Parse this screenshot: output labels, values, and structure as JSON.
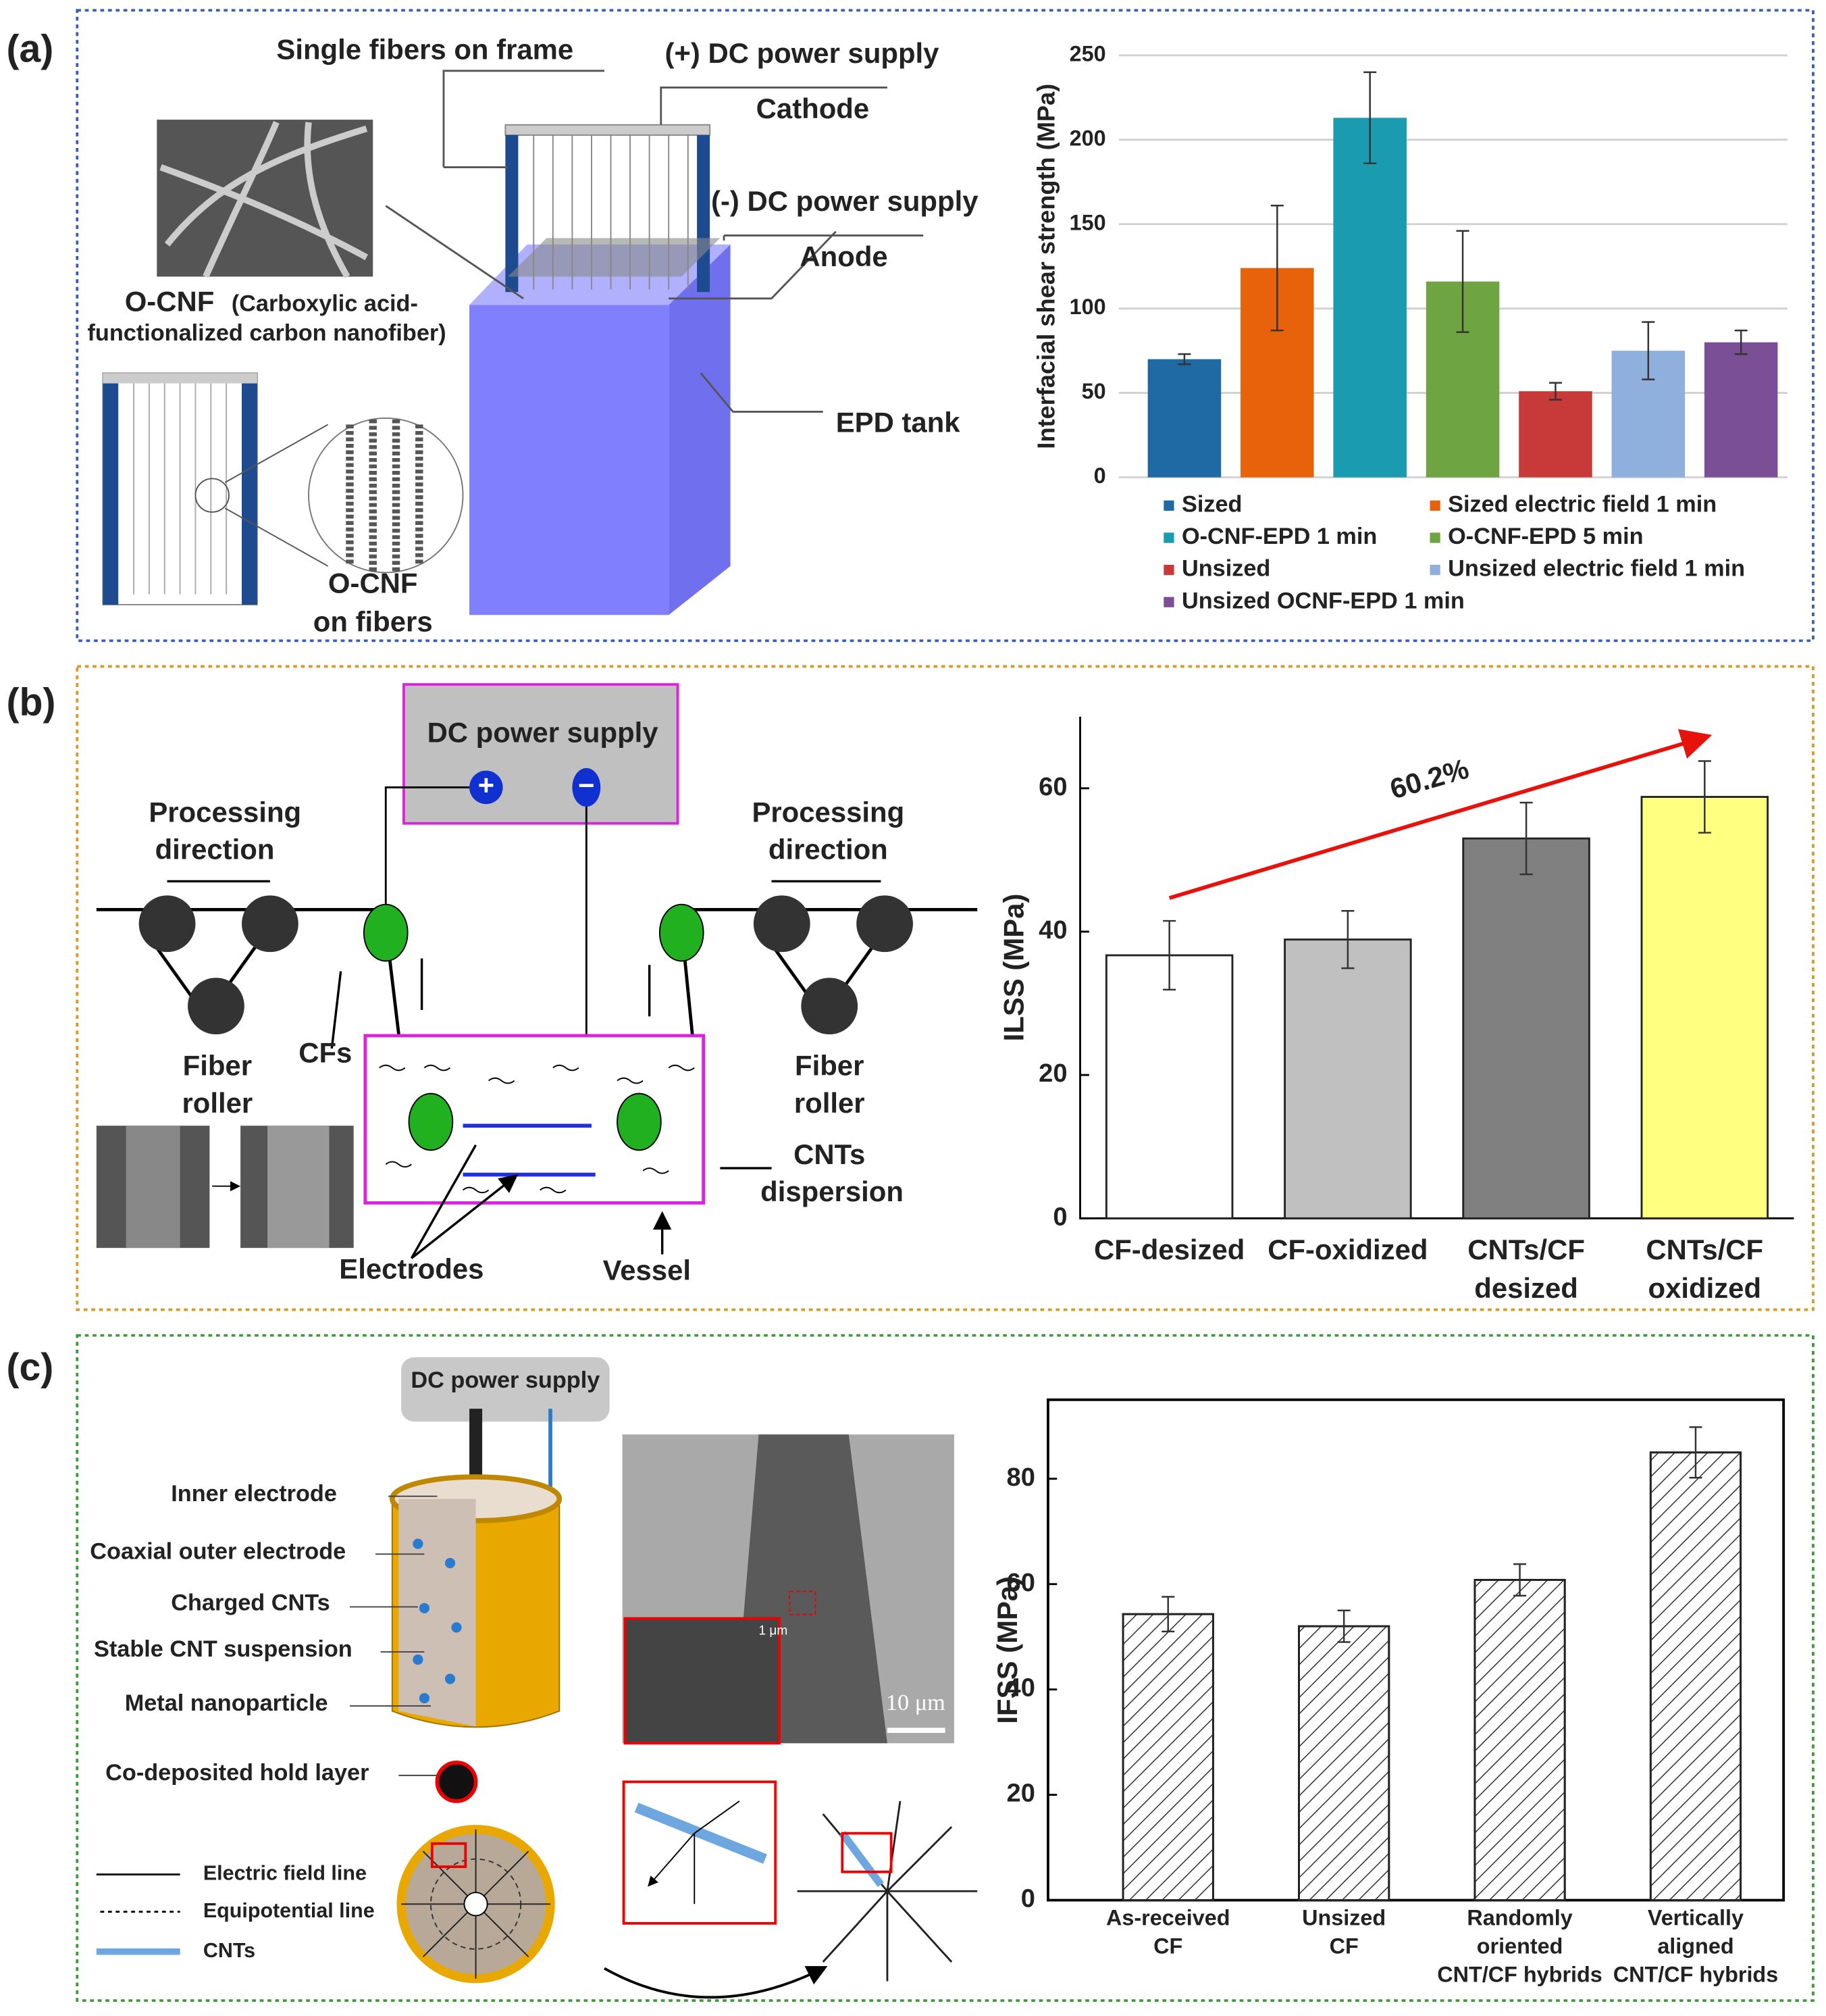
{
  "panel_labels": [
    "(a)",
    "(b)",
    "(c)"
  ],
  "diagrams": {
    "a": [
      "Single fibers on frame",
      "(+) DC power supply",
      "Cathode",
      "(-) DC power supply",
      "Anode",
      "O-CNF",
      "(Carboxylic acid-",
      "functionalized carbon nanofiber)",
      "EPD tank",
      "O-CNF",
      "on fibers"
    ],
    "b": [
      "DC power supply",
      "Processing",
      "direction",
      "Processing",
      "direction",
      "CFs",
      "Fiber",
      "roller",
      "Fiber",
      "roller",
      "CNTs",
      "dispersion",
      "Electrodes",
      "Vessel"
    ],
    "c": [
      "DC power supply",
      "Inner electrode",
      "Coaxial outer electrode",
      "Charged CNTs",
      "Stable CNT suspension",
      "Metal nanoparticle",
      "Co-deposited hold layer",
      "Electric field line",
      "Equipotential line",
      "CNTs",
      "1 μm",
      "10 μm"
    ]
  },
  "chart_data": [
    {
      "type": "bar",
      "ylabel": "Interfacial shear strength (MPa)",
      "categories": [
        "Sized",
        "Sized electric field 1 min",
        "O-CNF-EPD 1 min",
        "O-CNF-EPD 5 min",
        "Unsized",
        "Unsized electric field 1 min",
        "Unsized OCNF-EPD 1 min"
      ],
      "values": [
        70,
        124,
        213,
        116,
        51,
        75,
        80
      ],
      "errors": [
        3,
        37,
        27,
        30,
        5,
        17,
        7
      ],
      "colors": [
        "#1f6aa5",
        "#e8620c",
        "#1a9bb0",
        "#6ea442",
        "#c83a3a",
        "#8fb0dc",
        "#7b4f96"
      ],
      "ylim": [
        0,
        250
      ],
      "yticks": [
        0,
        50,
        100,
        150,
        200,
        250
      ],
      "grid": true,
      "legend": "bottom"
    },
    {
      "type": "bar",
      "ylabel": "ILSS (MPa)",
      "categories": [
        [
          "CF-desized"
        ],
        [
          "CF-oxidized"
        ],
        [
          "CNTs/CF",
          "desized"
        ],
        [
          "CNTs/CF",
          "oxidized"
        ]
      ],
      "values": [
        36.7,
        38.9,
        53,
        58.8
      ],
      "errors": [
        4.8,
        4,
        5,
        5
      ],
      "colors": [
        "#ffffff",
        "#c0c0c0",
        "#808080",
        "#ffff80"
      ],
      "annotation": "60.2%",
      "ylim": [
        0,
        70
      ],
      "yticks": [
        0,
        20,
        40,
        60
      ],
      "grid": false
    },
    {
      "type": "bar",
      "ylabel": "IFSS (MPa)",
      "categories": [
        [
          "As-received",
          "CF"
        ],
        [
          "Unsized",
          "CF"
        ],
        [
          "Randomly",
          "oriented",
          "CNT/CF hybrids"
        ],
        [
          "Vertically",
          "aligned",
          "CNT/CF hybrids"
        ]
      ],
      "values": [
        54.3,
        52,
        60.8,
        85
      ],
      "errors": [
        3.3,
        3,
        3,
        4.8
      ],
      "colors": [
        "#ffffff",
        "#ffffff",
        "#ffffff",
        "#ffffff"
      ],
      "hatch": true,
      "frame": true,
      "ylim": [
        0,
        95
      ],
      "yticks": [
        0,
        20,
        40,
        60,
        80
      ],
      "grid": false
    }
  ]
}
